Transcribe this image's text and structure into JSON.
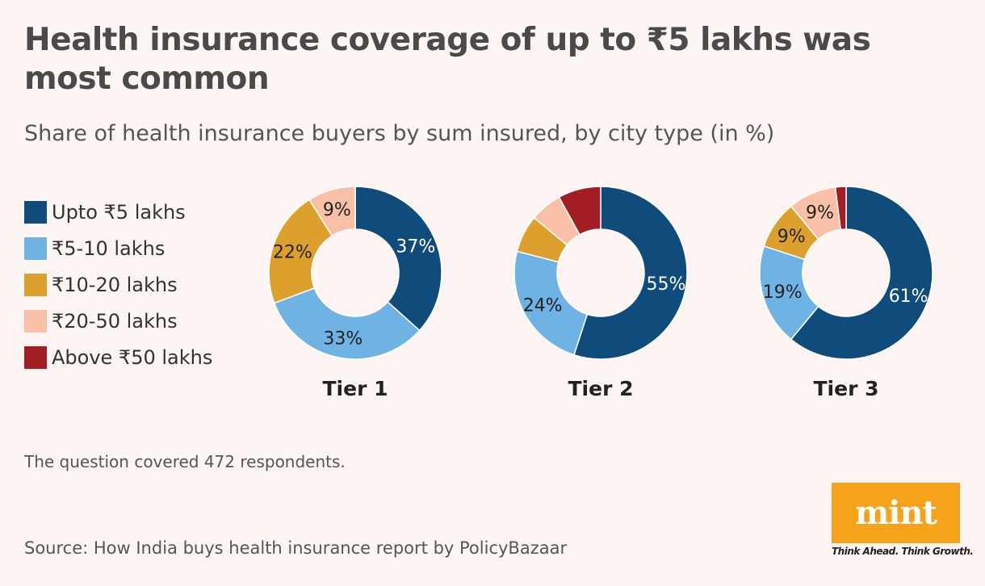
{
  "title": "Health insurance coverage of up to ₹5 lakhs was most common",
  "subtitle": "Share of health insurance buyers by sum insured, by city type (in %)",
  "legend": [
    {
      "label": "Upto ₹5 lakhs",
      "color": "#0f4c7c"
    },
    {
      "label": "₹5-10 lakhs",
      "color": "#6fb2e4"
    },
    {
      "label": "₹10-20 lakhs",
      "color": "#dda02d"
    },
    {
      "label": "₹20-50 lakhs",
      "color": "#f8c0a6"
    },
    {
      "label": "Above ₹50 lakhs",
      "color": "#a31d24"
    }
  ],
  "chart_data": [
    {
      "type": "pie",
      "donut": true,
      "title": "Tier 1",
      "categories": [
        "Upto ₹5 lakhs",
        "₹5-10 lakhs",
        "₹10-20 lakhs",
        "₹20-50 lakhs",
        "Above ₹50 lakhs"
      ],
      "values": [
        37,
        33,
        22,
        9,
        0
      ],
      "labels": [
        "37%",
        "33%",
        "22%",
        "9%",
        ""
      ]
    },
    {
      "type": "pie",
      "donut": true,
      "title": "Tier 2",
      "categories": [
        "Upto ₹5 lakhs",
        "₹5-10 lakhs",
        "₹10-20 lakhs",
        "₹20-50 lakhs",
        "Above ₹50 lakhs"
      ],
      "values": [
        55,
        24,
        7,
        6,
        8
      ],
      "labels": [
        "55%",
        "24%",
        "",
        "",
        ""
      ]
    },
    {
      "type": "pie",
      "donut": true,
      "title": "Tier 3",
      "categories": [
        "Upto ₹5 lakhs",
        "₹5-10 lakhs",
        "₹10-20 lakhs",
        "₹20-50 lakhs",
        "Above ₹50 lakhs"
      ],
      "values": [
        61,
        19,
        9,
        9,
        2
      ],
      "labels": [
        "61%",
        "19%",
        "9%",
        "9%",
        ""
      ]
    }
  ],
  "note": "The question covered 472 respondents.",
  "source": "Source: How India buys health insurance report by PolicyBazaar",
  "logo": {
    "text": "mint",
    "tagline": "Think Ahead. Think Growth.",
    "color": "#f7a21b"
  }
}
